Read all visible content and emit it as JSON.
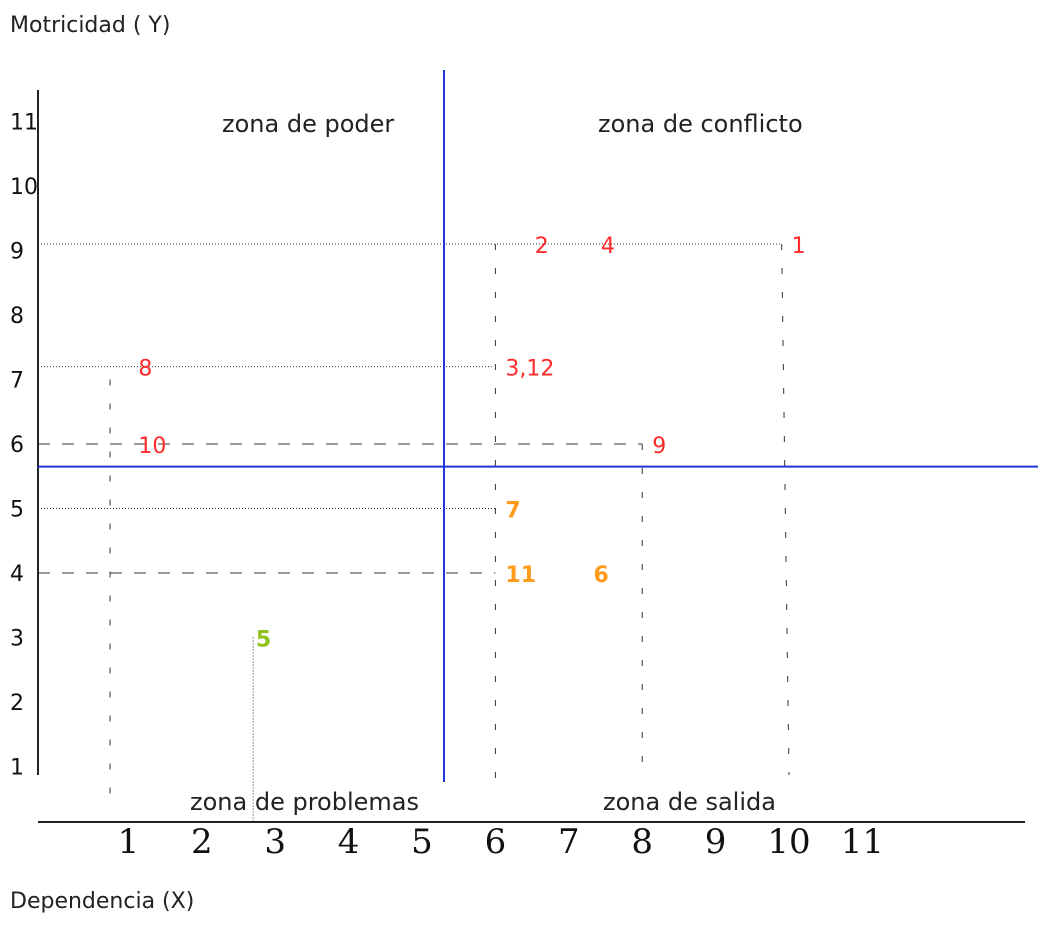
{
  "chart_data": {
    "type": "scatter",
    "ylabel": "Motricidad ( Y)",
    "xlabel": "Dependencia (X)",
    "xlim": [
      0,
      12
    ],
    "ylim": [
      0,
      11
    ],
    "x_ticks": [
      "1",
      "2",
      "3",
      "4",
      "5",
      "6",
      "7",
      "8",
      "9",
      "10",
      "11"
    ],
    "y_ticks": [
      "1",
      "2",
      "3",
      "4",
      "5",
      "6",
      "7",
      "8",
      "9",
      "10",
      "11"
    ],
    "quadrant_lines": {
      "x": 5.3,
      "y": 5.65
    },
    "zones": {
      "top_left": "zona de poder",
      "top_right": "zona de conflicto",
      "bottom_left": "zona de problemas",
      "bottom_right": "zona de salida"
    },
    "points": [
      {
        "label": "1",
        "x": 9.9,
        "y": 9.1,
        "color": "#ff2a2a"
      },
      {
        "label": "2",
        "x": 6.4,
        "y": 9.1,
        "color": "#ff2a2a"
      },
      {
        "label": "4",
        "x": 7.3,
        "y": 9.1,
        "color": "#ff2a2a"
      },
      {
        "label": "8",
        "x": 1.0,
        "y": 7.2,
        "color": "#ff2a2a"
      },
      {
        "label": "3,12",
        "x": 6.0,
        "y": 7.2,
        "color": "#ff2a2a"
      },
      {
        "label": "10",
        "x": 1.0,
        "y": 6.0,
        "color": "#ff2a2a"
      },
      {
        "label": "9",
        "x": 8.0,
        "y": 6.0,
        "color": "#ff2a2a"
      },
      {
        "label": "7",
        "x": 6.0,
        "y": 5.0,
        "color": "#ff9a1a"
      },
      {
        "label": "11",
        "x": 6.0,
        "y": 4.0,
        "color": "#ff9a1a"
      },
      {
        "label": "6",
        "x": 7.2,
        "y": 4.0,
        "color": "#ff9a1a"
      },
      {
        "label": "5",
        "x": 2.6,
        "y": 3.0,
        "color": "#8fc21b"
      }
    ]
  }
}
